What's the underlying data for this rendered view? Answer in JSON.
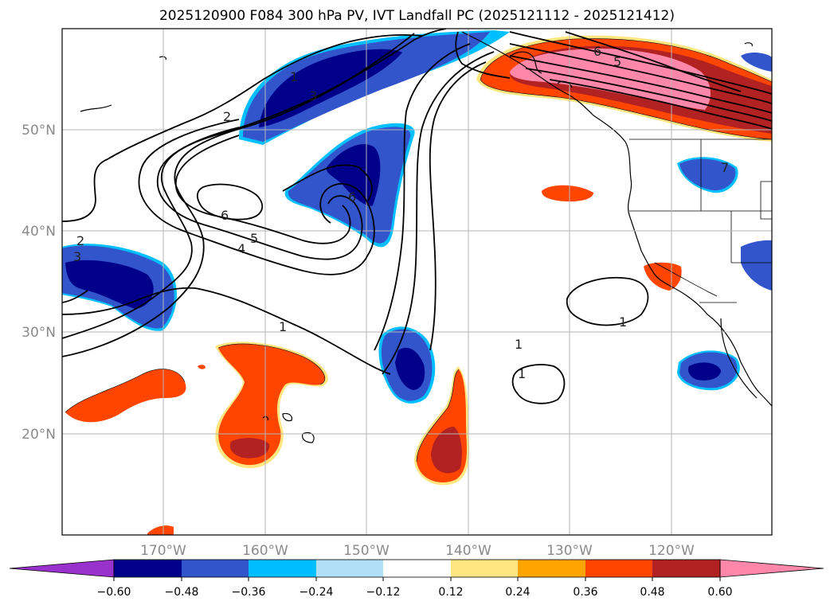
{
  "title": "2025120900 F084 300 hPa PV, IVT Landfall PC (2025121112 - 2025121412)",
  "map": {
    "lat_labels": [
      "50°N",
      "40°N",
      "30°N",
      "20°N"
    ],
    "lon_labels": [
      "170°W",
      "160°W",
      "150°W",
      "140°W",
      "130°W",
      "120°W"
    ],
    "contour_labels": [
      "1",
      "2",
      "3",
      "6",
      "5",
      "4",
      "2",
      "3",
      "1",
      "1",
      "1",
      "6",
      "5",
      "6",
      "1",
      "7"
    ]
  },
  "colorbar": {
    "ticks": [
      "−0.60",
      "−0.48",
      "−0.36",
      "−0.24",
      "−0.12",
      "0.12",
      "0.24",
      "0.36",
      "0.48",
      "0.60"
    ],
    "colors": [
      "#9932cc",
      "#00008b",
      "#3355cc",
      "#00bfff",
      "#b0e0f8",
      "#ffffff",
      "#ffe680",
      "#ffa500",
      "#ff4500",
      "#b22222",
      "#ff88aa"
    ]
  },
  "colors": {
    "dark_blue": "#00008b",
    "mid_blue": "#3355cc",
    "light_blue": "#00bfff",
    "orange_red": "#ff4500",
    "dark_red": "#b22222",
    "pink": "#ff88aa"
  }
}
